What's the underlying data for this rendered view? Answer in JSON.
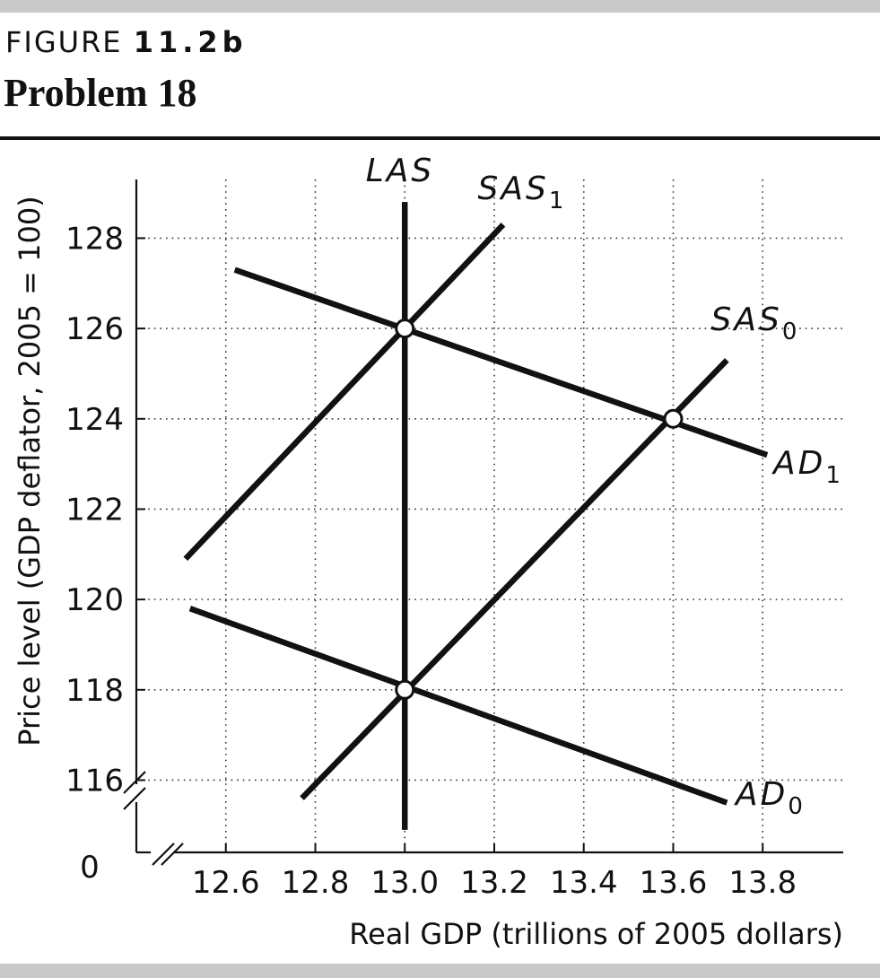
{
  "figure": {
    "label_prefix": "FIGURE",
    "label_number": "11.2b",
    "title": "Problem 18"
  },
  "chart_data": {
    "type": "line",
    "xlabel": "Real GDP (trillions of 2005 dollars)",
    "ylabel": "Price level (GDP deflator, 2005 = 100)",
    "origin_label": "0",
    "axis_break": true,
    "grid": "dotted",
    "xlim": [
      12.4,
      13.98
    ],
    "ylim": [
      114.4,
      129.3
    ],
    "xticks": [
      12.6,
      12.8,
      13.0,
      13.2,
      13.4,
      13.6,
      13.8
    ],
    "xtick_labels": [
      "12.6",
      "12.8",
      "13.0",
      "13.2",
      "13.4",
      "13.6",
      "13.8"
    ],
    "yticks": [
      116,
      118,
      120,
      122,
      124,
      126,
      128
    ],
    "ytick_labels": [
      "116",
      "118",
      "120",
      "122",
      "124",
      "126",
      "128"
    ],
    "series": [
      {
        "name": "LAS",
        "base": "LAS",
        "sub": "",
        "x": [
          13.0,
          13.0
        ],
        "y": [
          114.9,
          128.8
        ]
      },
      {
        "name": "SAS1",
        "base": "SAS",
        "sub": "1",
        "x": [
          12.51,
          13.22
        ],
        "y": [
          120.9,
          128.3
        ]
      },
      {
        "name": "SAS0",
        "base": "SAS",
        "sub": "0",
        "x": [
          12.77,
          13.72
        ],
        "y": [
          115.6,
          125.3
        ]
      },
      {
        "name": "AD1",
        "base": "AD",
        "sub": "1",
        "x": [
          12.62,
          13.81
        ],
        "y": [
          127.3,
          123.2
        ]
      },
      {
        "name": "AD0",
        "base": "AD",
        "sub": "0",
        "x": [
          12.52,
          13.72
        ],
        "y": [
          119.8,
          115.5
        ]
      }
    ],
    "equilibrium_points": [
      {
        "x": 13.0,
        "y": 126
      },
      {
        "x": 13.6,
        "y": 124
      },
      {
        "x": 13.0,
        "y": 118
      }
    ]
  }
}
